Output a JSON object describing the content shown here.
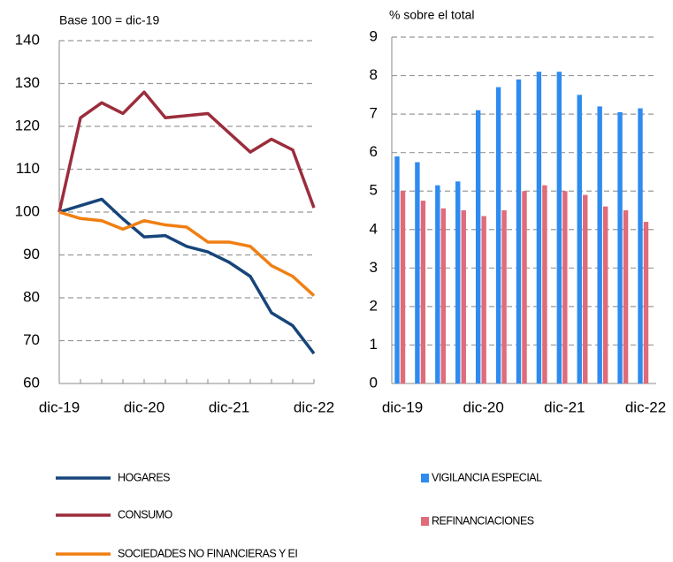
{
  "chart_data": [
    {
      "type": "line",
      "subtitle": "Base 100 = dic-19",
      "categories": [
        "dic-19",
        null,
        null,
        null,
        "dic-20",
        null,
        null,
        null,
        "dic-21",
        null,
        null,
        null,
        "dic-22"
      ],
      "series": [
        {
          "name": "HOGARES",
          "color": "#17457a",
          "values": [
            100,
            101.5,
            103,
            98.4,
            94.2,
            94.5,
            92,
            90.7,
            88.3,
            85,
            76.5,
            73.5,
            67
          ]
        },
        {
          "name": "CONSUMO",
          "color": "#9b2d3c",
          "values": [
            100,
            122,
            125.5,
            123,
            128,
            122,
            122.5,
            123,
            118.5,
            114,
            117,
            114.5,
            101
          ]
        },
        {
          "name": "SOCIEDADES NO FINANCIERAS Y EI",
          "color": "#f07f12",
          "values": [
            100,
            98.5,
            98,
            96,
            98,
            97,
            96.5,
            93,
            93,
            92,
            87.5,
            85,
            80.5
          ]
        }
      ],
      "ylim": [
        60,
        140
      ],
      "yticks": [
        60,
        70,
        80,
        90,
        100,
        110,
        120,
        130,
        140
      ],
      "grid": true
    },
    {
      "type": "bar",
      "subtitle": "% sobre el total",
      "categories": [
        "dic-19",
        null,
        null,
        null,
        "dic-20",
        null,
        null,
        null,
        "dic-21",
        null,
        null,
        null,
        "dic-22"
      ],
      "series": [
        {
          "name": "VIGILANCIA ESPECIAL",
          "color": "#2e8bf0",
          "values": [
            5.9,
            5.75,
            5.15,
            5.25,
            7.1,
            7.7,
            7.9,
            8.1,
            8.1,
            7.5,
            7.2,
            7.05,
            7.15
          ]
        },
        {
          "name": "REFINANCIACIONES",
          "color": "#e06b7a",
          "values": [
            5.0,
            4.75,
            4.55,
            4.5,
            4.35,
            4.5,
            5.0,
            5.15,
            5.0,
            4.9,
            4.6,
            4.5,
            4.2
          ]
        }
      ],
      "ylim": [
        0,
        9
      ],
      "yticks": [
        0,
        1,
        2,
        3,
        4,
        5,
        6,
        7,
        8,
        9
      ],
      "grid": true
    }
  ]
}
